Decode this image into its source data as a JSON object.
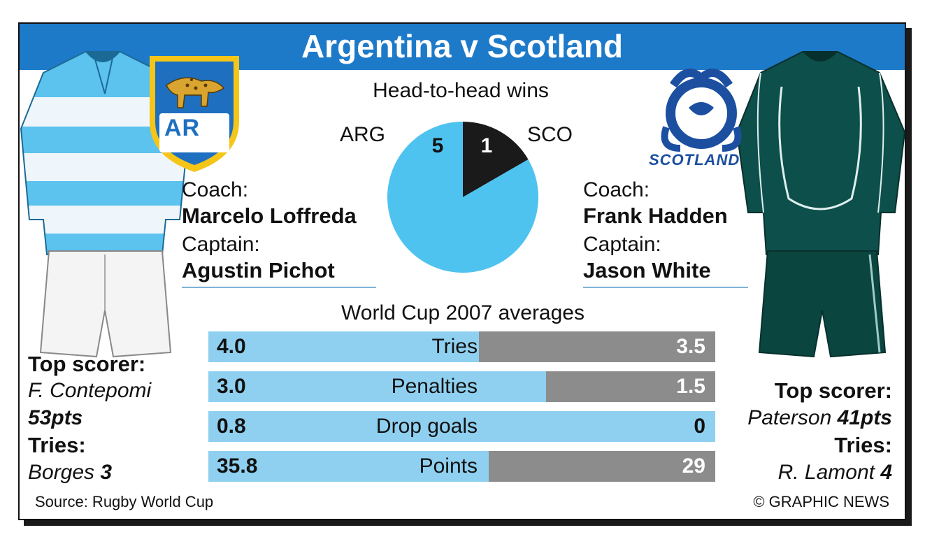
{
  "title": "Argentina v Scotland",
  "head_to_head": {
    "heading": "Head-to-head wins",
    "arg_label": "ARG",
    "sco_label": "SCO",
    "arg_wins": "5",
    "sco_wins": "1"
  },
  "argentina": {
    "crest_text": "AR",
    "coach_label": "Coach:",
    "coach": "Marcelo Loffreda",
    "captain_label": "Captain:",
    "captain": "Agustin Pichot",
    "top_scorer_label": "Top scorer:",
    "top_scorer_name": "F. Contepomi",
    "top_scorer_pts": "53pts",
    "tries_label": "Tries:",
    "tries_name": "Borges",
    "tries_count": "3"
  },
  "scotland": {
    "crest_text": "SCOTLAND",
    "coach_label": "Coach:",
    "coach": "Frank Hadden",
    "captain_label": "Captain:",
    "captain": "Jason White",
    "top_scorer_label": "Top scorer:",
    "top_scorer_name": "Paterson",
    "top_scorer_pts": "41pts",
    "tries_label": "Tries:",
    "tries_name": "R. Lamont",
    "tries_count": "4"
  },
  "averages_heading": "World Cup 2007 averages",
  "footer": {
    "source": "Source: Rugby World Cup",
    "credit": "© GRAPHIC NEWS"
  },
  "colors": {
    "banner": "#1d7ac9",
    "argentina": "#4fc3f0",
    "argentina_bar": "#8fd0f0",
    "scotland": "#1a1a1a",
    "scotland_bar": "#8c8c8c",
    "scotland_navy": "#1c4fa0",
    "scotland_kit": "#0d4f4a"
  },
  "chart_data": [
    {
      "type": "pie",
      "title": "Head-to-head wins",
      "categories": [
        "ARG",
        "SCO"
      ],
      "values": [
        5,
        1
      ]
    },
    {
      "type": "bar",
      "title": "World Cup 2007 averages",
      "categories": [
        "Tries",
        "Penalties",
        "Drop goals",
        "Points"
      ],
      "series": [
        {
          "values": [
            4.0,
            3.0,
            0.8,
            35.8
          ]
        },
        {
          "values": [
            3.5,
            1.5,
            0,
            29
          ]
        }
      ],
      "labels_left": [
        "4.0",
        "3.0",
        "0.8",
        "35.8"
      ],
      "labels_right": [
        "3.5",
        "1.5",
        "0",
        "29"
      ]
    }
  ]
}
